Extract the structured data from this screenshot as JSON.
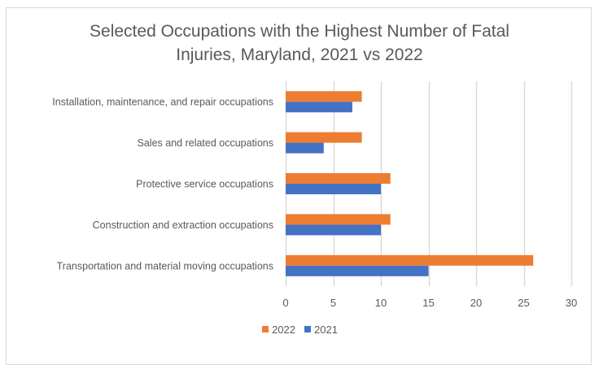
{
  "chart_data": {
    "type": "bar",
    "orientation": "horizontal",
    "title": "Selected Occupations with the Highest Number of Fatal Injuries, Maryland, 2021 vs 2022",
    "title_lines": [
      "Selected Occupations with the Highest Number of Fatal",
      "Injuries, Maryland, 2021 vs 2022"
    ],
    "categories": [
      "Installation, maintenance, and repair occupations",
      "Sales and related occupations",
      "Protective service occupations",
      "Construction and extraction occupations",
      "Transportation and material moving occupations"
    ],
    "series": [
      {
        "name": "2022",
        "color": "#ed7d31",
        "values": [
          8,
          8,
          11,
          11,
          26
        ]
      },
      {
        "name": "2021",
        "color": "#4472c4",
        "values": [
          7,
          4,
          10,
          10,
          15
        ]
      }
    ],
    "xlabel": "",
    "ylabel": "",
    "xlim": [
      0,
      30
    ],
    "x_ticks": [
      0,
      5,
      10,
      15,
      20,
      25,
      30
    ],
    "x_tick_labels": [
      "0",
      "5",
      "10",
      "15",
      "20",
      "25",
      "30"
    ],
    "grid": true,
    "grid_color": "#d9d9d9",
    "legend_position": "bottom"
  }
}
